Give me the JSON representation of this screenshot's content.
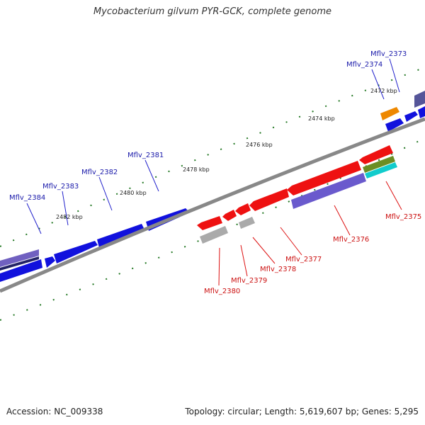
{
  "title": "Mycobacterium gilvum PYR-GCK, complete genome",
  "footer": {
    "accession": "Accession: NC_009338",
    "summary": "Topology: circular; Length: 5,619,607 bp; Genes: 5,295"
  },
  "colors": {
    "forward_gene": "#1111dd",
    "reverse_gene": "#ee1111",
    "forward_label": "#1a1aaa",
    "reverse_label": "#cc1111",
    "backbone": "#888888",
    "tick": "#227722"
  },
  "kbp_ticks": [
    "2472 kbp",
    "2474 kbp",
    "2476 kbp",
    "2478 kbp",
    "2480 kbp",
    "2482 kbp"
  ],
  "forward_labels": [
    "Mflv_2373",
    "Mflv_2374",
    "Mflv_2381",
    "Mflv_2382",
    "Mflv_2383",
    "Mflv_2384"
  ],
  "reverse_labels": [
    "Mflv_2375",
    "Mflv_2376",
    "Mflv_2377",
    "Mflv_2378",
    "Mflv_2379",
    "Mflv_2380"
  ]
}
